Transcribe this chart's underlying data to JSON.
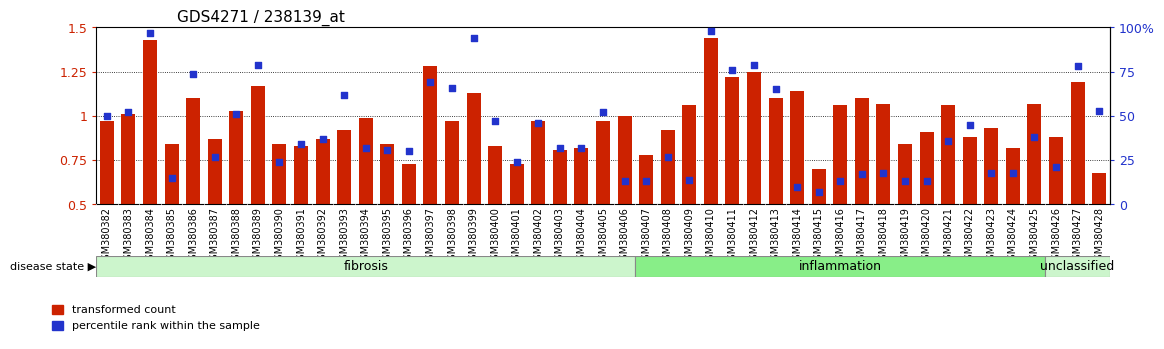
{
  "title": "GDS4271 / 238139_at",
  "samples": [
    "GSM380382",
    "GSM380383",
    "GSM380384",
    "GSM380385",
    "GSM380386",
    "GSM380387",
    "GSM380388",
    "GSM380389",
    "GSM380390",
    "GSM380391",
    "GSM380392",
    "GSM380393",
    "GSM380394",
    "GSM380395",
    "GSM380396",
    "GSM380397",
    "GSM380398",
    "GSM380399",
    "GSM380400",
    "GSM380401",
    "GSM380402",
    "GSM380403",
    "GSM380404",
    "GSM380405",
    "GSM380406",
    "GSM380407",
    "GSM380408",
    "GSM380409",
    "GSM380410",
    "GSM380411",
    "GSM380412",
    "GSM380413",
    "GSM380414",
    "GSM380415",
    "GSM380416",
    "GSM380417",
    "GSM380418",
    "GSM380419",
    "GSM380420",
    "GSM380421",
    "GSM380422",
    "GSM380423",
    "GSM380424",
    "GSM380425",
    "GSM380426",
    "GSM380427",
    "GSM380428"
  ],
  "bar_values": [
    0.97,
    1.01,
    1.43,
    0.84,
    1.1,
    0.87,
    1.03,
    1.17,
    0.84,
    0.83,
    0.87,
    0.92,
    0.99,
    0.84,
    0.73,
    1.28,
    0.97,
    1.13,
    0.83,
    0.73,
    0.97,
    0.81,
    0.82,
    0.97,
    1.0,
    0.78,
    0.92,
    1.06,
    1.44,
    1.22,
    1.25,
    1.1,
    1.14,
    0.7,
    1.06,
    1.1,
    1.07,
    0.84,
    0.91,
    1.06,
    0.88,
    0.93,
    0.82,
    1.07,
    0.88,
    1.19,
    0.68
  ],
  "dot_values_pct": [
    50,
    52,
    97,
    15,
    74,
    27,
    51,
    79,
    24,
    34,
    37,
    62,
    32,
    31,
    30,
    69,
    66,
    94,
    47,
    24,
    46,
    32,
    32,
    52,
    13,
    13,
    27,
    14,
    98,
    76,
    79,
    65,
    10,
    7,
    13,
    17,
    18,
    13,
    13,
    36,
    45,
    18,
    18,
    38,
    21,
    78,
    53
  ],
  "groups": [
    {
      "label": "fibrosis",
      "start": 0,
      "end": 24,
      "color": "#ccf5cc"
    },
    {
      "label": "inflammation",
      "start": 25,
      "end": 43,
      "color": "#88ee88"
    },
    {
      "label": "unclassified",
      "start": 44,
      "end": 46,
      "color": "#ccf5cc"
    }
  ],
  "bar_color": "#cc2200",
  "dot_color": "#2233cc",
  "ylim_left": [
    0.5,
    1.5
  ],
  "ylim_right": [
    0,
    100
  ],
  "yticks_left": [
    0.5,
    0.75,
    1.0,
    1.25,
    1.5
  ],
  "ytick_labels_left": [
    "0.5",
    "0.75",
    "1",
    "1.25",
    "1.5"
  ],
  "yticks_right": [
    0,
    25,
    50,
    75,
    100
  ],
  "ytick_labels_right": [
    "0",
    "25",
    "50",
    "75",
    "100%"
  ],
  "bar_bottom": 0.5,
  "background_color": "#ffffff",
  "left_tick_color": "#cc2200",
  "right_tick_color": "#2233cc",
  "grid_lines": [
    0.75,
    1.0,
    1.25
  ],
  "title_fontsize": 11,
  "tick_label_fontsize": 7,
  "group_label_fontsize": 9,
  "legend_fontsize": 8
}
